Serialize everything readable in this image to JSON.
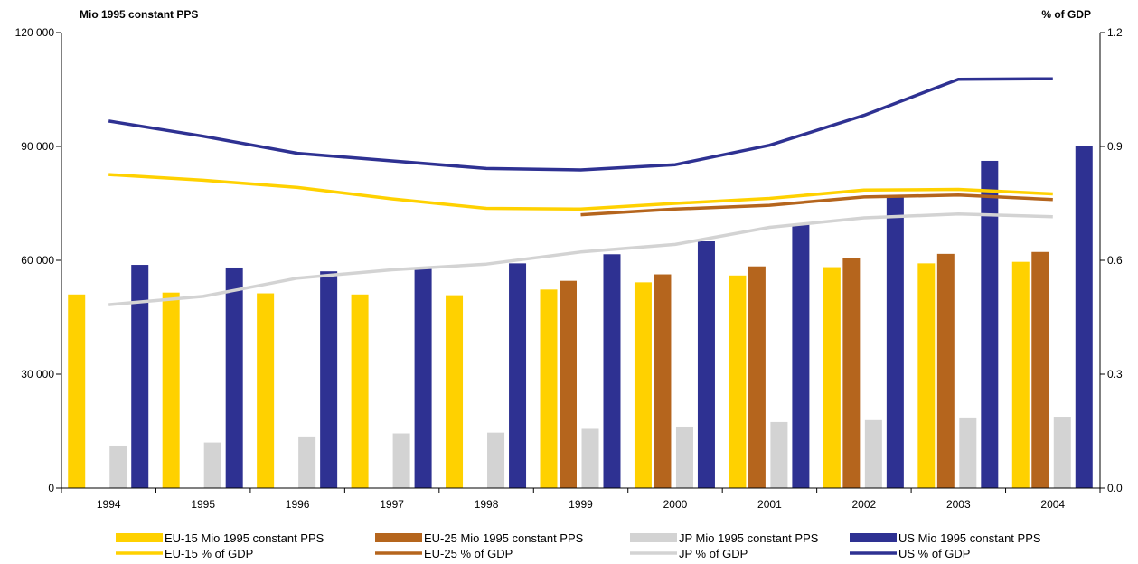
{
  "chart_data": {
    "type": "bar",
    "categories": [
      "1994",
      "1995",
      "1996",
      "1997",
      "1998",
      "1999",
      "2000",
      "2001",
      "2002",
      "2003",
      "2004"
    ],
    "left_axis_title": "Mio 1995 constant PPS",
    "right_axis_title": "% of GDP",
    "left_ylim": [
      0,
      120000
    ],
    "right_ylim": [
      0.0,
      1.2
    ],
    "left_ticks": [
      "0",
      "30 000",
      "60 000",
      "90 000",
      "120 000"
    ],
    "right_ticks": [
      "0.0",
      "0.3",
      "0.6",
      "0.9",
      "1.2"
    ],
    "bar_series": [
      {
        "name": "EU-15 Mio 1995 constant PPS",
        "color": "#FFD100",
        "values": [
          51000,
          51500,
          51300,
          51000,
          50800,
          52300,
          54200,
          56000,
          58200,
          59200,
          59600
        ]
      },
      {
        "name": "EU-25 Mio 1995 constant PPS",
        "color": "#B5651D",
        "values": [
          null,
          null,
          null,
          null,
          null,
          54600,
          56300,
          58400,
          60500,
          61700,
          62200
        ]
      },
      {
        "name": "JP Mio 1995 constant PPS",
        "color": "#D3D3D3",
        "values": [
          11200,
          12000,
          13600,
          14400,
          14600,
          15600,
          16200,
          17400,
          17900,
          18600,
          18800
        ]
      },
      {
        "name": "US Mio 1995 constant PPS",
        "color": "#2E3192",
        "values": [
          58800,
          58100,
          57100,
          58000,
          59200,
          61600,
          65000,
          69400,
          76800,
          86200,
          90000
        ]
      }
    ],
    "line_series": [
      {
        "name": "EU-15 % of GDP",
        "color": "#FFD100",
        "values": [
          0.826,
          0.811,
          0.792,
          0.762,
          0.737,
          0.735,
          0.75,
          0.763,
          0.785,
          0.787,
          0.775
        ]
      },
      {
        "name": "EU-25 % of GDP",
        "color": "#B5651D",
        "values": [
          null,
          null,
          null,
          null,
          null,
          0.72,
          0.735,
          0.745,
          0.767,
          0.772,
          0.76
        ]
      },
      {
        "name": "JP % of GDP",
        "color": "#D3D3D3",
        "values": [
          0.483,
          0.505,
          0.553,
          0.575,
          0.59,
          0.622,
          0.642,
          0.687,
          0.712,
          0.722,
          0.715
        ]
      },
      {
        "name": "US % of GDP",
        "color": "#2E3192",
        "values": [
          0.967,
          0.927,
          0.882,
          0.862,
          0.842,
          0.838,
          0.852,
          0.903,
          0.982,
          1.077,
          1.078
        ]
      }
    ],
    "grid": false,
    "legend_position": "bottom"
  }
}
